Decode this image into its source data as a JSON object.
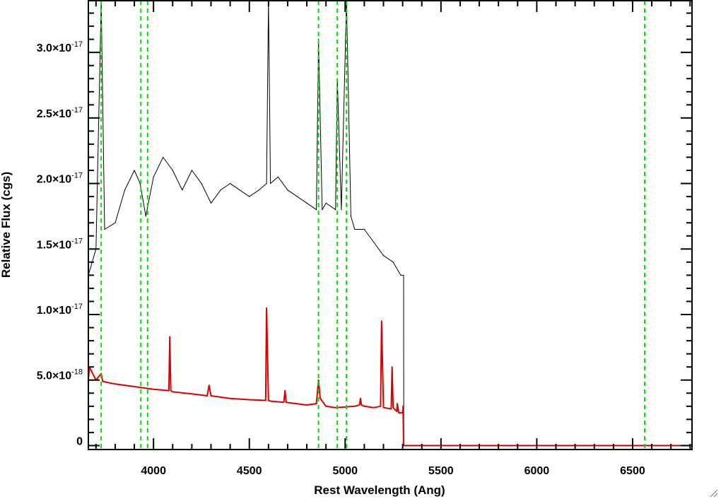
{
  "chart_data": {
    "type": "line",
    "xlabel": "Rest Wavelength (Ang)",
    "ylabel": "Relative Flux (cgs)",
    "xlim": [
      3660,
      6810
    ],
    "ylim": [
      -3e-19,
      3.4e-17
    ],
    "x_ticks": [
      4000,
      4500,
      5000,
      5500,
      6000,
      6500
    ],
    "y_ticks": [
      {
        "value": 0,
        "mantissa": "0",
        "exponent": ""
      },
      {
        "value": 5e-18,
        "mantissa": "5.0×10",
        "exponent": "-18"
      },
      {
        "value": 1e-17,
        "mantissa": "1.0×10",
        "exponent": "-17"
      },
      {
        "value": 1.5e-17,
        "mantissa": "1.5×10",
        "exponent": "-17"
      },
      {
        "value": 2e-17,
        "mantissa": "2.0×10",
        "exponent": "-17"
      },
      {
        "value": 2.5e-17,
        "mantissa": "2.5×10",
        "exponent": "-17"
      },
      {
        "value": 3e-17,
        "mantissa": "3.0×10",
        "exponent": "-17"
      }
    ],
    "grid": false,
    "legend": "none",
    "series": [
      {
        "color": "#000000",
        "style": "noisy spectrum",
        "x": [
          3660,
          3700,
          3727,
          3745,
          3800,
          3850,
          3900,
          3930,
          3960,
          4000,
          4050,
          4100,
          4150,
          4200,
          4250,
          4300,
          4350,
          4400,
          4450,
          4500,
          4550,
          4590,
          4600,
          4610,
          4650,
          4700,
          4750,
          4800,
          4850,
          4861,
          4880,
          4900,
          4950,
          4959,
          4980,
          5007,
          5030,
          5050,
          5100,
          5150,
          5200,
          5250,
          5290,
          5305,
          5306,
          6810
        ],
        "y": [
          1.3e-17,
          1.5e-17,
          3.4e-17,
          1.65e-17,
          1.7e-17,
          1.95e-17,
          2.1e-17,
          2e-17,
          1.75e-17,
          2.05e-17,
          2.2e-17,
          2.1e-17,
          1.95e-17,
          2.1e-17,
          2e-17,
          1.85e-17,
          1.95e-17,
          2e-17,
          1.95e-17,
          1.9e-17,
          1.95e-17,
          2e-17,
          3.4e-17,
          2e-17,
          2.05e-17,
          1.95e-17,
          1.9e-17,
          1.85e-17,
          1.8e-17,
          3.1e-17,
          1.8e-17,
          1.85e-17,
          1.8e-17,
          2.8e-17,
          1.8e-17,
          3.4e-17,
          1.75e-17,
          1.65e-17,
          1.65e-17,
          1.55e-17,
          1.45e-17,
          1.4e-17,
          1.3e-17,
          1.3e-17,
          0,
          0
        ]
      },
      {
        "color": "#dd0000",
        "style": "model continuum",
        "x": [
          3660,
          3665,
          3700,
          3727,
          3735,
          3800,
          3900,
          4000,
          4080,
          4085,
          4090,
          4100,
          4200,
          4280,
          4290,
          4300,
          4400,
          4500,
          4585,
          4590,
          4600,
          4606,
          4680,
          4686,
          4692,
          4800,
          4850,
          4861,
          4870,
          4900,
          4950,
          5000,
          5050,
          5075,
          5080,
          5085,
          5100,
          5150,
          5185,
          5190,
          5200,
          5240,
          5245,
          5250,
          5270,
          5272,
          5280,
          5300,
          5302,
          5305,
          6810
        ],
        "y": [
          5e-18,
          6e-18,
          5e-18,
          5.5e-18,
          4.9e-18,
          4.7e-18,
          4.5e-18,
          4.3e-18,
          4.2e-18,
          8.3e-18,
          4.2e-18,
          4.1e-18,
          3.95e-18,
          3.8e-18,
          4.6e-18,
          3.8e-18,
          3.6e-18,
          3.5e-18,
          3.45e-18,
          1.05e-17,
          3.45e-18,
          3.4e-18,
          3.3e-18,
          4.2e-18,
          3.3e-18,
          3.1e-18,
          3.2e-18,
          5e-18,
          3.6e-18,
          3e-18,
          2.9e-18,
          2.95e-18,
          3e-18,
          3.1e-18,
          3.6e-18,
          3.1e-18,
          3e-18,
          2.9e-18,
          3e-18,
          9.5e-18,
          2.9e-18,
          2.8e-18,
          6e-18,
          2.9e-18,
          2.6e-18,
          3.2e-18,
          2.5e-18,
          2.5e-18,
          3e-18,
          0,
          0
        ]
      }
    ],
    "reference_lines": {
      "color": "#00dd00",
      "style": "dashed",
      "x": [
        3727,
        3934,
        3969,
        4861,
        4959,
        5007,
        6563
      ]
    }
  }
}
